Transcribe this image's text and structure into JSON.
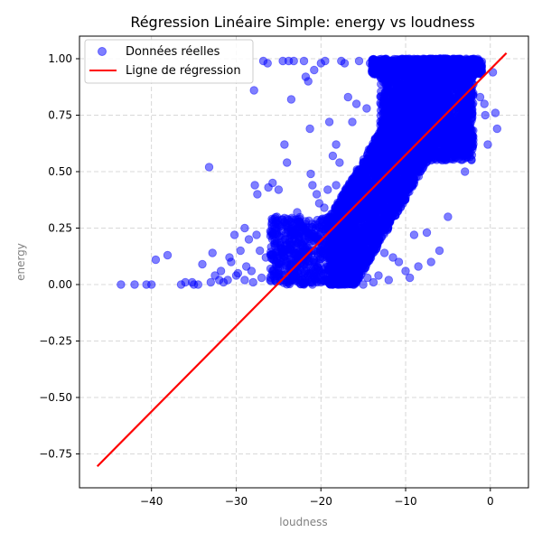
{
  "chart_data": {
    "type": "scatter",
    "title": "Régression Linéaire Simple: energy vs loudness",
    "xlabel": "loudness",
    "ylabel": "energy",
    "xlim": [
      -48.5,
      4.5
    ],
    "ylim": [
      -0.9,
      1.1
    ],
    "xticks": [
      -40,
      -30,
      -20,
      -10,
      0
    ],
    "yticks": [
      -0.75,
      -0.5,
      -0.25,
      0.0,
      0.25,
      0.5,
      0.75,
      1.0
    ],
    "xtick_labels": [
      "−40",
      "−30",
      "−20",
      "−10",
      "0"
    ],
    "ytick_labels": [
      "−0.75",
      "−0.50",
      "−0.25",
      "0.00",
      "0.25",
      "0.50",
      "0.75",
      "1.00"
    ],
    "grid": true,
    "legend_placement": "top-left",
    "series": [
      {
        "name": "Données réelles",
        "kind": "scatter",
        "color": "#0000ff",
        "opacity": 0.5,
        "points": [
          [
            -43.6,
            0.0
          ],
          [
            -42.0,
            0.0
          ],
          [
            -40.6,
            0.0
          ],
          [
            -40.0,
            0.0
          ],
          [
            -39.5,
            0.11
          ],
          [
            -38.1,
            0.13
          ],
          [
            -36.5,
            0.0
          ],
          [
            -36.0,
            0.01
          ],
          [
            -35.2,
            0.01
          ],
          [
            -35.0,
            0.0
          ],
          [
            -34.5,
            0.0
          ],
          [
            -33.2,
            0.52
          ],
          [
            -32.8,
            0.14
          ],
          [
            -32.0,
            0.02
          ],
          [
            -31.5,
            0.01
          ],
          [
            -30.6,
            0.1
          ],
          [
            -30.2,
            0.22
          ],
          [
            -29.5,
            0.15
          ],
          [
            -29.0,
            0.25
          ],
          [
            -28.5,
            0.2
          ],
          [
            -28.2,
            0.06
          ],
          [
            -27.9,
            0.86
          ],
          [
            -27.8,
            0.44
          ],
          [
            -27.5,
            0.4
          ],
          [
            -27.2,
            0.15
          ],
          [
            -26.8,
            0.99
          ],
          [
            -26.3,
            0.98
          ],
          [
            -26.2,
            0.43
          ],
          [
            -25.7,
            0.45
          ],
          [
            -25.2,
            0.3
          ],
          [
            -25.0,
            0.42
          ],
          [
            -24.5,
            0.99
          ],
          [
            -24.3,
            0.62
          ],
          [
            -24.0,
            0.54
          ],
          [
            -23.8,
            0.99
          ],
          [
            -23.5,
            0.82
          ],
          [
            -23.2,
            0.99
          ],
          [
            -22.5,
            0.29
          ],
          [
            -22.0,
            0.99
          ],
          [
            -21.8,
            0.92
          ],
          [
            -21.5,
            0.9
          ],
          [
            -21.3,
            0.69
          ],
          [
            -21.2,
            0.49
          ],
          [
            -21.0,
            0.44
          ],
          [
            -20.8,
            0.95
          ],
          [
            -20.5,
            0.4
          ],
          [
            -20.0,
            0.98
          ],
          [
            -19.5,
            0.99
          ],
          [
            -19.0,
            0.72
          ],
          [
            -18.6,
            0.57
          ],
          [
            -18.2,
            0.62
          ],
          [
            -17.8,
            0.54
          ],
          [
            -17.6,
            0.99
          ],
          [
            -17.2,
            0.98
          ],
          [
            -16.8,
            0.83
          ],
          [
            -16.3,
            0.72
          ],
          [
            -15.8,
            0.8
          ],
          [
            -15.5,
            0.99
          ],
          [
            -15.2,
            0.45
          ],
          [
            -14.6,
            0.78
          ],
          [
            -14.2,
            0.98
          ],
          [
            -13.5,
            0.96
          ],
          [
            -13.0,
            0.98
          ],
          [
            -12.5,
            0.97
          ],
          [
            -11.8,
            0.99
          ],
          [
            -11.0,
            0.95
          ],
          [
            -10.5,
            0.99
          ],
          [
            -9.8,
            0.94
          ],
          [
            -9.2,
            0.99
          ],
          [
            -8.6,
            0.97
          ],
          [
            -8.0,
            0.99
          ],
          [
            -7.4,
            0.98
          ],
          [
            -6.8,
            0.96
          ],
          [
            -6.2,
            0.99
          ],
          [
            -5.5,
            0.97
          ],
          [
            -4.8,
            0.99
          ],
          [
            -4.0,
            0.98
          ],
          [
            -3.5,
            0.93
          ],
          [
            -2.8,
            0.99
          ],
          [
            -2.2,
            0.95
          ],
          [
            -1.5,
            0.99
          ],
          [
            -1.0,
            0.97
          ],
          [
            -0.7,
            0.8
          ],
          [
            -0.6,
            0.75
          ],
          [
            -0.3,
            0.62
          ],
          [
            0.3,
            0.94
          ],
          [
            0.6,
            0.76
          ],
          [
            0.8,
            0.69
          ],
          [
            -1.2,
            0.83
          ],
          [
            -2.5,
            0.58
          ],
          [
            -3.0,
            0.5
          ],
          [
            -5.0,
            0.3
          ],
          [
            -6.0,
            0.15
          ],
          [
            -7.0,
            0.1
          ],
          [
            -7.5,
            0.23
          ],
          [
            -8.5,
            0.08
          ],
          [
            -9.0,
            0.22
          ],
          [
            -9.5,
            0.03
          ],
          [
            -10.0,
            0.06
          ],
          [
            -10.8,
            0.1
          ],
          [
            -11.5,
            0.12
          ],
          [
            -12.0,
            0.02
          ],
          [
            -12.5,
            0.14
          ],
          [
            -13.2,
            0.04
          ],
          [
            -13.8,
            0.01
          ],
          [
            -14.5,
            0.03
          ],
          [
            -15.0,
            0.0
          ],
          [
            -15.5,
            0.04
          ],
          [
            -16.2,
            0.0
          ],
          [
            -17.0,
            0.03
          ],
          [
            -18.0,
            0.0
          ],
          [
            -19.0,
            0.02
          ],
          [
            -20.0,
            0.01
          ],
          [
            -21.0,
            0.03
          ],
          [
            -22.0,
            0.0
          ],
          [
            -23.0,
            0.02
          ],
          [
            -24.0,
            0.01
          ],
          [
            -25.0,
            0.05
          ],
          [
            -26.0,
            0.02
          ],
          [
            -27.0,
            0.03
          ],
          [
            -28.0,
            0.01
          ],
          [
            -29.0,
            0.02
          ],
          [
            -30.0,
            0.04
          ],
          [
            -31.0,
            0.02
          ],
          [
            -33.0,
            0.01
          ],
          [
            -34.0,
            0.09
          ],
          [
            -26.5,
            0.12
          ],
          [
            -25.5,
            0.18
          ],
          [
            -24.6,
            0.1
          ],
          [
            -23.6,
            0.16
          ],
          [
            -22.6,
            0.2
          ],
          [
            -21.6,
            0.14
          ],
          [
            -20.6,
            0.24
          ],
          [
            -19.6,
            0.34
          ],
          [
            -18.6,
            0.3
          ],
          [
            -17.6,
            0.38
          ],
          [
            -16.6,
            0.42
          ],
          [
            -15.6,
            0.36
          ],
          [
            -14.6,
            0.44
          ],
          [
            -20.2,
            0.36
          ],
          [
            -19.2,
            0.42
          ],
          [
            -18.2,
            0.44
          ],
          [
            -17.2,
            0.26
          ],
          [
            -16.2,
            0.22
          ],
          [
            -22.8,
            0.32
          ],
          [
            -21.8,
            0.28
          ],
          [
            -23.2,
            0.24
          ],
          [
            -24.2,
            0.2
          ],
          [
            -25.8,
            0.22
          ],
          [
            -27.6,
            0.22
          ],
          [
            -28.8,
            0.08
          ],
          [
            -31.8,
            0.06
          ],
          [
            -30.8,
            0.12
          ],
          [
            -32.5,
            0.04
          ],
          [
            -29.8,
            0.05
          ]
        ],
        "dense_regions": [
          {
            "x": [
              -26,
              -16
            ],
            "y": [
              0.0,
              0.3
            ],
            "n": 700,
            "trend": false
          },
          {
            "x": [
              -19,
              -5
            ],
            "y": [
              0.05,
              0.95
            ],
            "n": 3800,
            "trend": true
          },
          {
            "x": [
              -13,
              -2
            ],
            "y": [
              0.55,
              1.0
            ],
            "n": 2200,
            "trend": false
          },
          {
            "x": [
              -14,
              -1
            ],
            "y": [
              0.93,
              1.0
            ],
            "n": 900,
            "trend": false
          }
        ]
      },
      {
        "name": "Ligne de régression",
        "kind": "line",
        "color": "#ff0000",
        "x": [
          -46.4,
          1.9
        ],
        "y": [
          -0.805,
          1.025
        ]
      }
    ]
  }
}
